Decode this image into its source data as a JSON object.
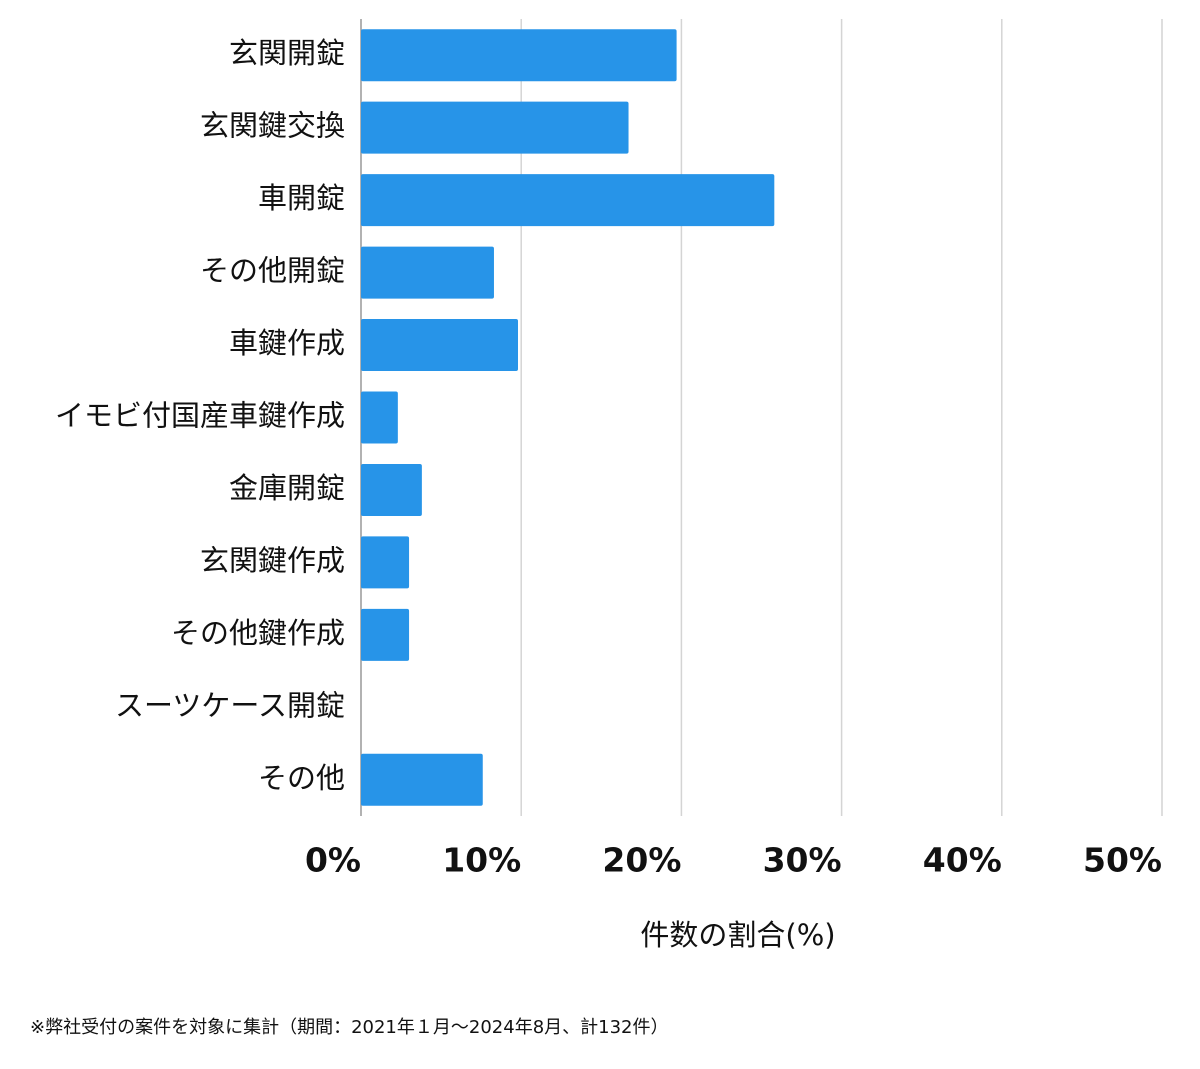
{
  "chart_data": {
    "type": "bar",
    "orientation": "horizontal",
    "categories": [
      "玄関開錠",
      "玄関鍵交換",
      "車開錠",
      "その他開錠",
      "車鍵作成",
      "イモビ付国産車鍵作成",
      "金庫開錠",
      "玄関鍵作成",
      "その他鍵作成",
      "スーツケース開錠",
      "その他"
    ],
    "values": [
      19.7,
      16.7,
      25.8,
      8.3,
      9.8,
      2.3,
      3.8,
      3.0,
      3.0,
      0,
      7.6
    ],
    "color": "#2794e8",
    "xlim": [
      0,
      50
    ],
    "xticks": [
      {
        "value": 0,
        "label": "0%"
      },
      {
        "value": 10,
        "label": "10%"
      },
      {
        "value": 20,
        "label": "20%"
      },
      {
        "value": 30,
        "label": "30%"
      },
      {
        "value": 40,
        "label": "40%"
      },
      {
        "value": 50,
        "label": "50%"
      }
    ],
    "xlabel": "件数の割合(%)",
    "grid": true,
    "footnote": "※弊社受付の案件を対象に集計（期間：2021年１月〜2024年8月、計132件）"
  }
}
